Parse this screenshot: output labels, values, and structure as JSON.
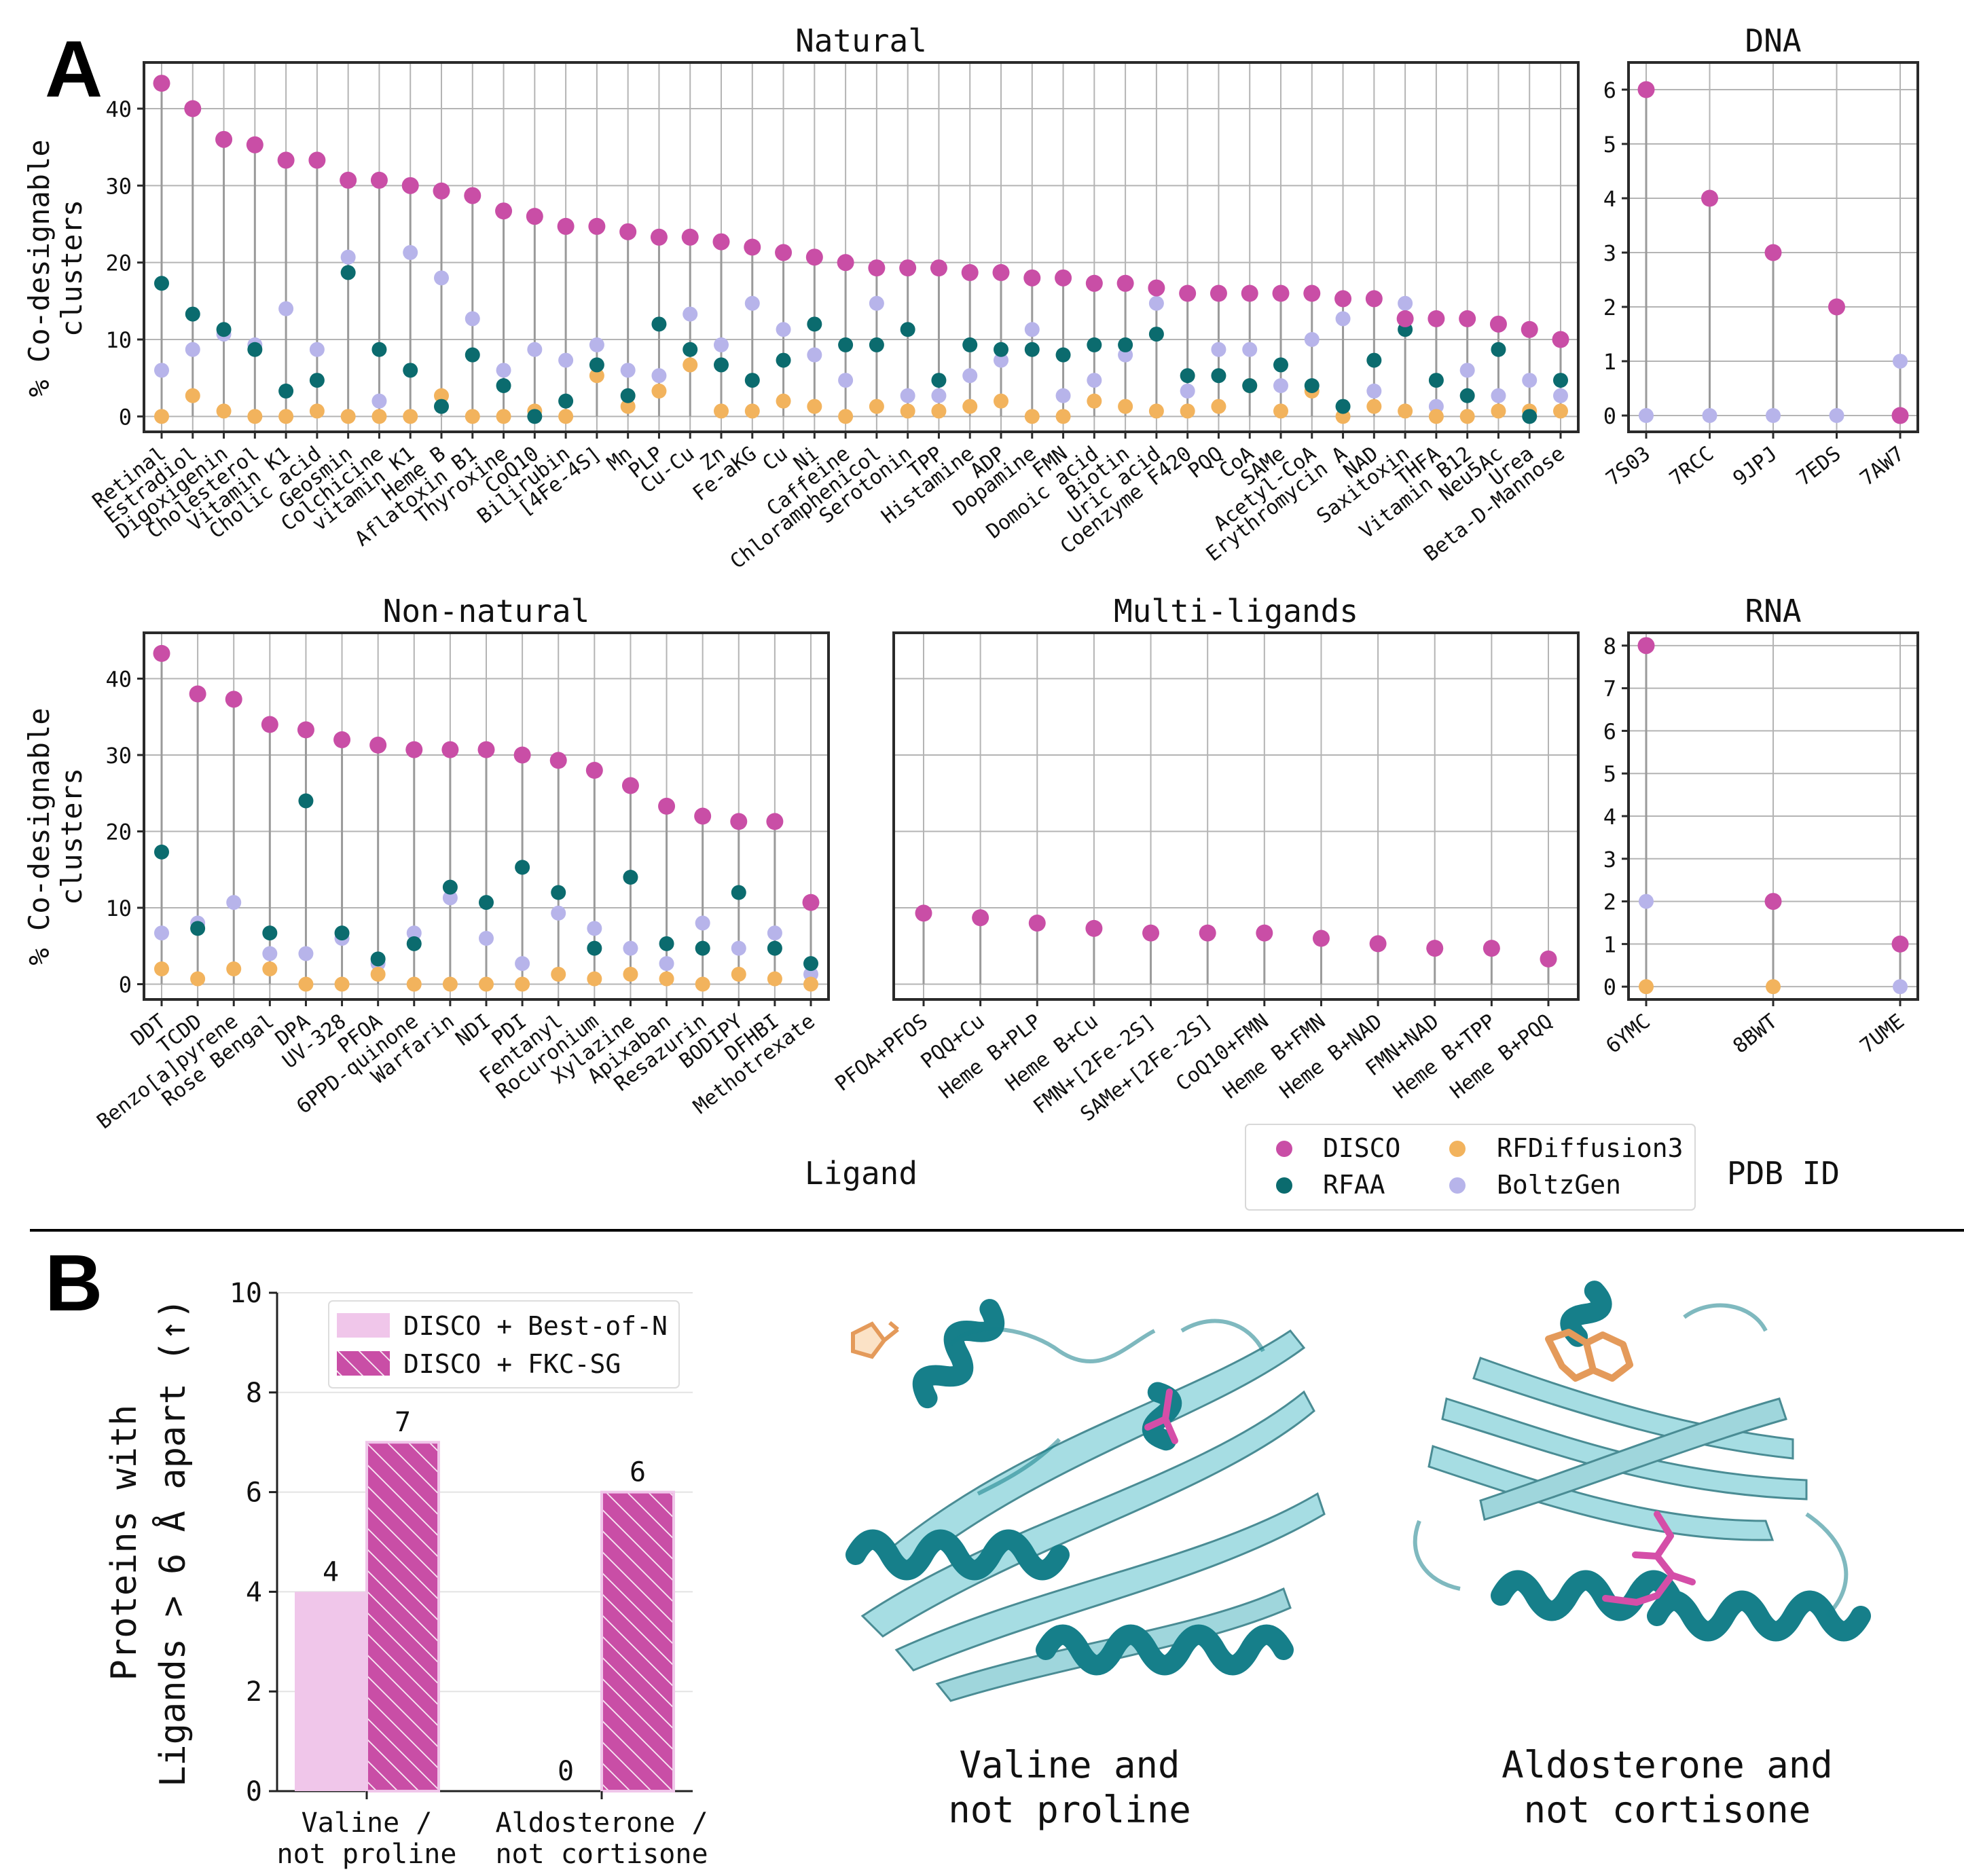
{
  "panel_labels": {
    "a": "A",
    "b": "B"
  },
  "colors": {
    "disco": "#c94ea6",
    "rfaa": "#0b6b6e",
    "rfdiffusion3": "#f2b35d",
    "boltzgen": "#b7b4ea",
    "grid": "#b4b4b4",
    "axis": "#2a2a2a",
    "bestofn": "#f0c6ea",
    "fkc": "#c94ea6",
    "helix": "#167f8a",
    "sheet": "#a6dde3",
    "ligand_orange": "#f0a86a",
    "ligand_pink": "#d54ea8"
  },
  "shared": {
    "ylabel": "% Co-designable\nclusters",
    "xlabel_ligand": "Ligand",
    "xlabel_pdb": "PDB ID"
  },
  "legend_a": [
    {
      "key": "disco",
      "label": "DISCO"
    },
    {
      "key": "rfdiffusion3",
      "label": "RFDiffusion3"
    },
    {
      "key": "rfaa",
      "label": "RFAA"
    },
    {
      "key": "boltzgen",
      "label": "BoltzGen"
    }
  ],
  "chart_data": [
    {
      "id": "natural",
      "type": "scatter",
      "title": "Natural",
      "ylabel": "% Co-designable\nclusters",
      "xlabel": "Ligand",
      "ylim": [
        -2,
        46
      ],
      "yticks": [
        0,
        10,
        20,
        30,
        40
      ],
      "categories": [
        "Retinal",
        "Estradiol",
        "Digoxigenin",
        "Cholesterol",
        "Vitamin K1",
        "Cholic acid",
        "Geosmin",
        "Colchicine",
        "vitamin K1",
        "Heme B",
        "Aflatoxin B1",
        "Thyroxine",
        "CoQ10",
        "Bilirubin",
        "[4Fe-4S]",
        "Mn",
        "PLP",
        "Cu-Cu",
        "Zn",
        "Fe-aKG",
        "Cu",
        "Ni",
        "Caffeine",
        "Chloramphenicol",
        "Serotonin",
        "TPP",
        "Histamine",
        "ADP",
        "Dopamine",
        "FMN",
        "Domoic acid",
        "Biotin",
        "Uric acid",
        "Coenzyme F420",
        "PQQ",
        "CoA",
        "SAMe",
        "Acetyl-CoA",
        "Erythromycin A",
        "NAD",
        "Saxitoxin",
        "THFA",
        "Vitamin B12",
        "Neu5Ac",
        "Urea",
        "Beta-D-Mannose"
      ],
      "series": [
        {
          "name": "DISCO",
          "key": "disco",
          "values": [
            43.3,
            40,
            36,
            35.3,
            33.3,
            33.3,
            30.7,
            30.7,
            30,
            29.3,
            28.7,
            26.7,
            26,
            24.7,
            24.7,
            24,
            23.3,
            23.3,
            22.7,
            22,
            21.3,
            20.7,
            20,
            19.3,
            19.3,
            19.3,
            18.7,
            18.7,
            18,
            18,
            17.3,
            17.3,
            16.7,
            16,
            16,
            16,
            16,
            16,
            15.3,
            15.3,
            12.7,
            12.7,
            12.7,
            12,
            11.3,
            10
          ]
        },
        {
          "name": "RFAA",
          "key": "rfaa",
          "values": [
            17.3,
            13.3,
            11.3,
            8.7,
            3.3,
            4.7,
            18.7,
            8.7,
            6,
            1.3,
            8,
            4,
            0,
            2,
            6.7,
            2.7,
            12,
            8.7,
            6.7,
            4.7,
            7.3,
            12,
            9.3,
            9.3,
            11.3,
            4.7,
            9.3,
            8.7,
            8.7,
            8,
            9.3,
            9.3,
            10.7,
            5.3,
            5.3,
            4,
            6.7,
            4,
            1.3,
            7.3,
            11.3,
            4.7,
            2.7,
            8.7,
            0,
            4.7
          ]
        },
        {
          "name": "RFDiffusion3",
          "key": "rfdiffusion3",
          "values": [
            0,
            2.7,
            0.7,
            0,
            0,
            0.7,
            0,
            0,
            0,
            2.7,
            0,
            0,
            0.7,
            0,
            5.3,
            1.3,
            3.3,
            6.7,
            0.7,
            0.7,
            2,
            1.3,
            0,
            1.3,
            0.7,
            0.7,
            1.3,
            2,
            0,
            0,
            2,
            1.3,
            0.7,
            0.7,
            1.3,
            4,
            0.7,
            3.3,
            0,
            1.3,
            0.7,
            0,
            0,
            0.7,
            0.7,
            0.7
          ]
        },
        {
          "name": "BoltzGen",
          "key": "boltzgen",
          "values": [
            6,
            8.7,
            10.7,
            9.3,
            14,
            8.7,
            20.7,
            2,
            21.3,
            18,
            12.7,
            6,
            8.7,
            7.3,
            9.3,
            6,
            5.3,
            13.3,
            9.3,
            14.7,
            11.3,
            8,
            4.7,
            14.7,
            2.7,
            2.7,
            5.3,
            7.3,
            11.3,
            2.7,
            4.7,
            8,
            14.7,
            3.3,
            8.7,
            8.7,
            4,
            10,
            12.7,
            3.3,
            14.7,
            1.3,
            6,
            2.7,
            4.7,
            2.7
          ]
        }
      ]
    },
    {
      "id": "dna",
      "type": "scatter",
      "title": "DNA",
      "xlabel": "PDB ID",
      "ylim": [
        -0.3,
        6.5
      ],
      "yticks": [
        0,
        1,
        2,
        3,
        4,
        5,
        6
      ],
      "categories": [
        "7S03",
        "7RCC",
        "9JPJ",
        "7EDS",
        "7AW7"
      ],
      "series": [
        {
          "name": "BoltzGen",
          "key": "boltzgen",
          "values": [
            0,
            0,
            0,
            0,
            1
          ]
        },
        {
          "name": "DISCO",
          "key": "disco",
          "values": [
            6,
            4,
            3,
            2,
            0
          ]
        }
      ]
    },
    {
      "id": "nonnatural",
      "type": "scatter",
      "title": "Non-natural",
      "ylabel": "% Co-designable\nclusters",
      "xlabel": "Ligand",
      "ylim": [
        -2,
        46
      ],
      "yticks": [
        0,
        10,
        20,
        30,
        40
      ],
      "categories": [
        "DDT",
        "TCDD",
        "Benzo[a]pyrene",
        "Rose Bengal",
        "DPA",
        "UV-328",
        "PFOA",
        "6PPD-quinone",
        "Warfarin",
        "NDI",
        "PDI",
        "Fentanyl",
        "Rocuronium",
        "Xylazine",
        "Apixaban",
        "Resazurin",
        "BODIPY",
        "DFHBI",
        "Methotrexate"
      ],
      "series": [
        {
          "name": "DISCO",
          "key": "disco",
          "values": [
            43.3,
            38,
            37.3,
            34,
            33.3,
            32,
            31.3,
            30.7,
            30.7,
            30.7,
            30,
            29.3,
            28,
            26,
            23.3,
            22,
            21.3,
            21.3,
            10.7
          ]
        },
        {
          "name": "RFAA",
          "key": "rfaa",
          "values": [
            17.3,
            7.3,
            null,
            6.7,
            24,
            6.7,
            3.3,
            5.3,
            12.7,
            10.7,
            15.3,
            12,
            4.7,
            14,
            5.3,
            4.7,
            12,
            4.7,
            2.7
          ]
        },
        {
          "name": "RFDiffusion3",
          "key": "rfdiffusion3",
          "values": [
            2,
            0.7,
            2,
            2,
            0,
            0,
            1.3,
            0,
            0,
            0,
            0,
            1.3,
            0.7,
            1.3,
            0.7,
            0,
            1.3,
            0.7,
            0
          ]
        },
        {
          "name": "BoltzGen",
          "key": "boltzgen",
          "values": [
            6.7,
            8,
            10.7,
            4,
            4,
            6,
            2.7,
            6.7,
            11.3,
            6,
            2.7,
            9.3,
            7.3,
            4.7,
            2.7,
            8,
            4.7,
            6.7,
            1.3
          ]
        }
      ]
    },
    {
      "id": "multi",
      "type": "scatter",
      "title": "Multi-ligands",
      "ylim": [
        -2,
        46
      ],
      "yticks": [
        0,
        10,
        20,
        30,
        40
      ],
      "categories": [
        "PFOA+PFOS",
        "PQQ+Cu",
        "Heme B+PLP",
        "Heme B+Cu",
        "FMN+[2Fe-2S]",
        "SAMe+[2Fe-2S]",
        "CoQ10+FMN",
        "Heme B+FMN",
        "Heme B+NAD",
        "FMN+NAD",
        "Heme B+TPP",
        "Heme B+PQQ"
      ],
      "series": [
        {
          "name": "DISCO",
          "key": "disco",
          "values": [
            9.3,
            8.7,
            8,
            7.3,
            6.7,
            6.7,
            6.7,
            6,
            5.3,
            4.7,
            4.7,
            3.3
          ]
        }
      ]
    },
    {
      "id": "rna",
      "type": "scatter",
      "title": "RNA",
      "xlabel": "PDB ID",
      "ylim": [
        -0.3,
        8.3
      ],
      "yticks": [
        0,
        1,
        2,
        3,
        4,
        5,
        6,
        7,
        8
      ],
      "categories": [
        "6YMC",
        "8BWT",
        "7UME"
      ],
      "series": [
        {
          "name": "DISCO",
          "key": "disco",
          "values": [
            8,
            2,
            1
          ]
        },
        {
          "name": "RFDiffusion3",
          "key": "rfdiffusion3",
          "values": [
            0,
            0,
            null
          ]
        },
        {
          "name": "BoltzGen",
          "key": "boltzgen",
          "values": [
            2,
            null,
            0
          ]
        }
      ]
    },
    {
      "id": "panel_b",
      "type": "bar",
      "ylabel": "Proteins with\nLigands > 6 Å apart (↑)",
      "ylim": [
        0,
        10
      ],
      "yticks": [
        0,
        2,
        4,
        6,
        8,
        10
      ],
      "categories": [
        "Valine /\nnot proline",
        "Aldosterone /\nnot cortisone"
      ],
      "series": [
        {
          "name": "DISCO + Best-of-N",
          "key": "bestofn",
          "values": [
            4,
            0
          ]
        },
        {
          "name": "DISCO + FKC-SG",
          "key": "fkc",
          "values": [
            7,
            6
          ]
        }
      ]
    }
  ],
  "captions": [
    "Valine and\nnot proline",
    "Aldosterone and\nnot cortisone"
  ]
}
